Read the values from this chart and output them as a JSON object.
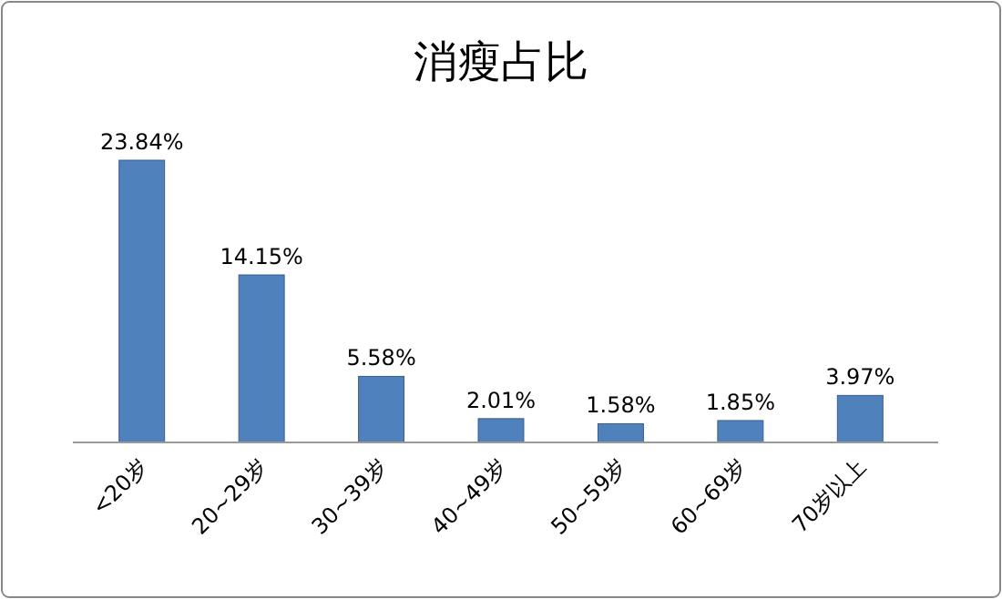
{
  "chart_data": {
    "type": "bar",
    "title": "消瘦占比",
    "categories": [
      "<20岁",
      "20~29岁",
      "30~39岁",
      "40~49岁",
      "50~59岁",
      "60~69岁",
      "70岁以上"
    ],
    "values": [
      23.84,
      14.15,
      5.58,
      2.01,
      1.58,
      1.85,
      3.97
    ],
    "value_labels": [
      "23.84%",
      "14.15%",
      "5.58%",
      "2.01%",
      "1.58%",
      "1.85%",
      "3.97%"
    ],
    "color": "#4f81bd",
    "legend": false
  }
}
